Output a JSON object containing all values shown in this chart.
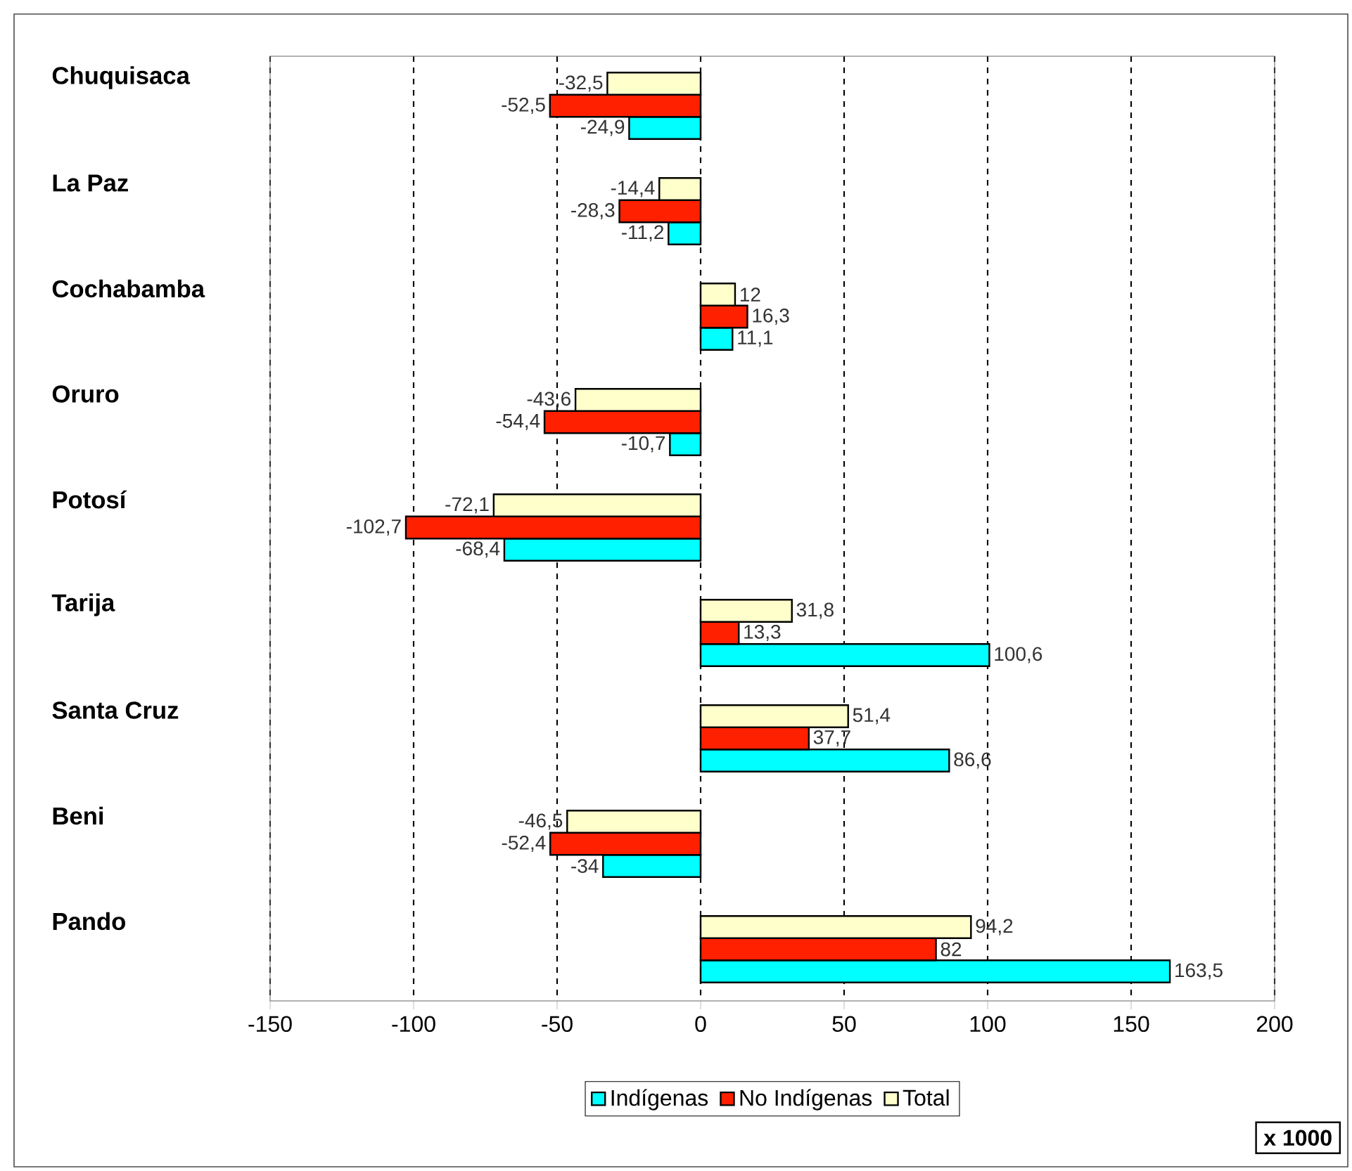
{
  "chart_data": {
    "type": "bar",
    "orientation": "horizontal",
    "categories": [
      "Chuquisaca",
      "La Paz",
      "Cochabamba",
      "Oruro",
      "Potosí",
      "Tarija",
      "Santa Cruz",
      "Beni",
      "Pando"
    ],
    "series": [
      {
        "name": "Indígenas",
        "color": "#00ffff",
        "values": [
          -24.9,
          -11.2,
          11.1,
          -10.7,
          -68.4,
          100.6,
          86.6,
          -34,
          163.5
        ],
        "value_labels": [
          "-24,9",
          "-11,2",
          "11,1",
          "-10,7",
          "-68,4",
          "100,6",
          "86,6",
          "-34",
          "163,5"
        ]
      },
      {
        "name": "No Indígenas",
        "color": "#ff2000",
        "values": [
          -52.5,
          -28.3,
          16.3,
          -54.4,
          -102.7,
          13.3,
          37.7,
          -52.4,
          82
        ],
        "value_labels": [
          "-52,5",
          "-28,3",
          "16,3",
          "-54,4",
          "-102,7",
          "13,3",
          "37,7",
          "-52,4",
          "82"
        ]
      },
      {
        "name": "Total",
        "color": "#ffffcc",
        "values": [
          -32.5,
          -14.4,
          12,
          -43.6,
          -72.1,
          31.8,
          51.4,
          -46.5,
          94.2
        ],
        "value_labels": [
          "-32,5",
          "-14,4",
          "12",
          "-43,6",
          "-72,1",
          "31,8",
          "51,4",
          "-46,5",
          "94,2"
        ]
      }
    ],
    "xlim": [
      -150,
      200
    ],
    "xticks": [
      -150,
      -100,
      -50,
      0,
      50,
      100,
      150,
      200
    ],
    "grid": "x",
    "legend": "bottom",
    "annotations": [
      "x 1000"
    ]
  }
}
